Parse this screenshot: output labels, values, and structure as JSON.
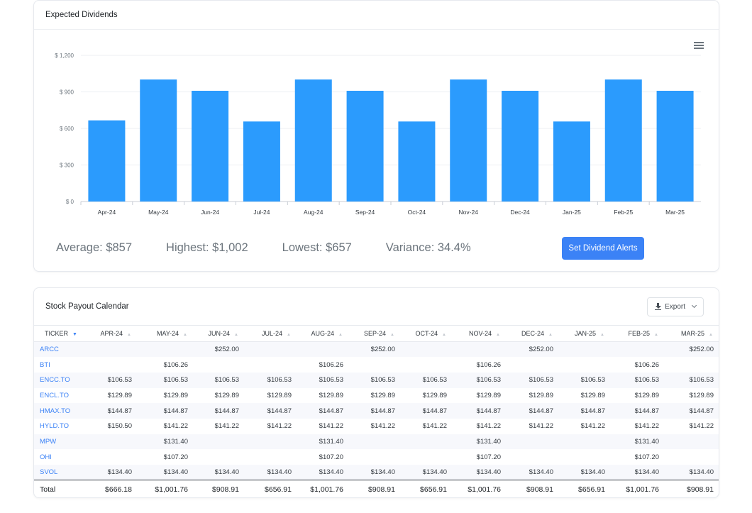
{
  "dividends_card": {
    "title": "Expected Dividends",
    "menu_icon": "hamburger-menu-icon",
    "stats": {
      "average": "Average: $857",
      "highest": "Highest: $1,002",
      "lowest": "Lowest: $657",
      "variance": "Variance: 34.4%"
    },
    "alert_button": "Set Dividend Alerts"
  },
  "chart_data": {
    "type": "bar",
    "categories": [
      "Apr-24",
      "May-24",
      "Jun-24",
      "Jul-24",
      "Aug-24",
      "Sep-24",
      "Oct-24",
      "Nov-24",
      "Dec-24",
      "Jan-25",
      "Feb-25",
      "Mar-25"
    ],
    "values": [
      666.18,
      1001.76,
      908.91,
      656.91,
      1001.76,
      908.91,
      656.91,
      1001.76,
      908.91,
      656.91,
      1001.76,
      908.91
    ],
    "yticks": [
      "$ 0",
      "$ 300",
      "$ 600",
      "$ 900",
      "$ 1,200"
    ],
    "ytick_values": [
      0,
      300,
      600,
      900,
      1200
    ],
    "ylim": [
      0,
      1200
    ],
    "grid": true,
    "bar_color": "#2b9bfd"
  },
  "calendar_card": {
    "title": "Stock Payout Calendar",
    "export_label": "Export",
    "export_icon": "download-icon",
    "headers": [
      "TICKER",
      "APR-24",
      "MAY-24",
      "JUN-24",
      "JUL-24",
      "AUG-24",
      "SEP-24",
      "OCT-24",
      "NOV-24",
      "DEC-24",
      "JAN-25",
      "FEB-25",
      "MAR-25"
    ],
    "rows": [
      [
        "ARCC",
        "",
        "",
        "$252.00",
        "",
        "",
        "$252.00",
        "",
        "",
        "$252.00",
        "",
        "",
        "$252.00"
      ],
      [
        "BTI",
        "",
        "$106.26",
        "",
        "",
        "$106.26",
        "",
        "",
        "$106.26",
        "",
        "",
        "$106.26",
        ""
      ],
      [
        "ENCC.TO",
        "$106.53",
        "$106.53",
        "$106.53",
        "$106.53",
        "$106.53",
        "$106.53",
        "$106.53",
        "$106.53",
        "$106.53",
        "$106.53",
        "$106.53",
        "$106.53"
      ],
      [
        "ENCL.TO",
        "$129.89",
        "$129.89",
        "$129.89",
        "$129.89",
        "$129.89",
        "$129.89",
        "$129.89",
        "$129.89",
        "$129.89",
        "$129.89",
        "$129.89",
        "$129.89"
      ],
      [
        "HMAX.TO",
        "$144.87",
        "$144.87",
        "$144.87",
        "$144.87",
        "$144.87",
        "$144.87",
        "$144.87",
        "$144.87",
        "$144.87",
        "$144.87",
        "$144.87",
        "$144.87"
      ],
      [
        "HYLD.TO",
        "$150.50",
        "$141.22",
        "$141.22",
        "$141.22",
        "$141.22",
        "$141.22",
        "$141.22",
        "$141.22",
        "$141.22",
        "$141.22",
        "$141.22",
        "$141.22"
      ],
      [
        "MPW",
        "",
        "$131.40",
        "",
        "",
        "$131.40",
        "",
        "",
        "$131.40",
        "",
        "",
        "$131.40",
        ""
      ],
      [
        "OHI",
        "",
        "$107.20",
        "",
        "",
        "$107.20",
        "",
        "",
        "$107.20",
        "",
        "",
        "$107.20",
        ""
      ],
      [
        "SVOL",
        "$134.40",
        "$134.40",
        "$134.40",
        "$134.40",
        "$134.40",
        "$134.40",
        "$134.40",
        "$134.40",
        "$134.40",
        "$134.40",
        "$134.40",
        "$134.40"
      ]
    ],
    "total": [
      "Total",
      "$666.18",
      "$1,001.76",
      "$908.91",
      "$656.91",
      "$1,001.76",
      "$908.91",
      "$656.91",
      "$1,001.76",
      "$908.91",
      "$656.91",
      "$1,001.76",
      "$908.91"
    ],
    "colors": {
      "link": "#3b82f6",
      "stripe": "#f7f8fc"
    }
  }
}
